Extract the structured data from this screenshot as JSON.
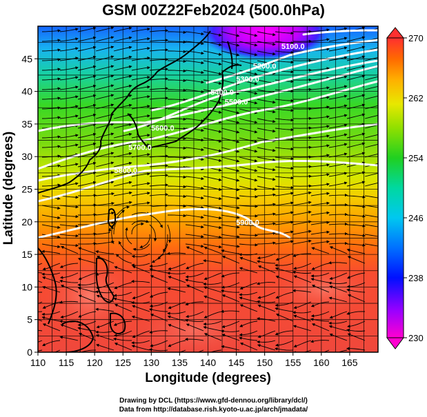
{
  "title": "GSM 00Z22Feb2024 (500.0hPa)",
  "x_axis": {
    "label": "Longitude (degrees)",
    "min": 110,
    "max": 170,
    "ticks": [
      "110",
      "115",
      "120",
      "125",
      "130",
      "135",
      "140",
      "145",
      "150",
      "155",
      "160",
      "165"
    ]
  },
  "y_axis": {
    "label": "Latitude  (degrees)",
    "min": 0,
    "max": 50,
    "ticks": [
      "0",
      "5",
      "10",
      "15",
      "20",
      "25",
      "30",
      "35",
      "40",
      "45"
    ]
  },
  "colorbar": {
    "ticks": [
      "230",
      "238",
      "246",
      "254",
      "262",
      "270"
    ],
    "min": 230,
    "max": 270
  },
  "contour_labels": [
    {
      "text": "5100.0",
      "lon": 155,
      "lat": 46.5
    },
    {
      "text": "5200.0",
      "lon": 150,
      "lat": 43.5
    },
    {
      "text": "5300.0",
      "lon": 147,
      "lat": 41.5
    },
    {
      "text": "5400.0",
      "lon": 142.5,
      "lat": 39.5
    },
    {
      "text": "5500.0",
      "lon": 145,
      "lat": 38
    },
    {
      "text": "5600.0",
      "lon": 132,
      "lat": 34
    },
    {
      "text": "5700.0",
      "lon": 128,
      "lat": 31
    },
    {
      "text": "5800.0",
      "lon": 125.5,
      "lat": 27.5
    },
    {
      "text": "5900.0",
      "lon": 147,
      "lat": 19.5
    }
  ],
  "credits": {
    "line1": "Drawing by DCL (https://www.gfd-dennou.org/library/dcl/)",
    "line2": "Data from http://database.rish.kyoto-u.ac.jp/arch/jmadata/"
  }
}
